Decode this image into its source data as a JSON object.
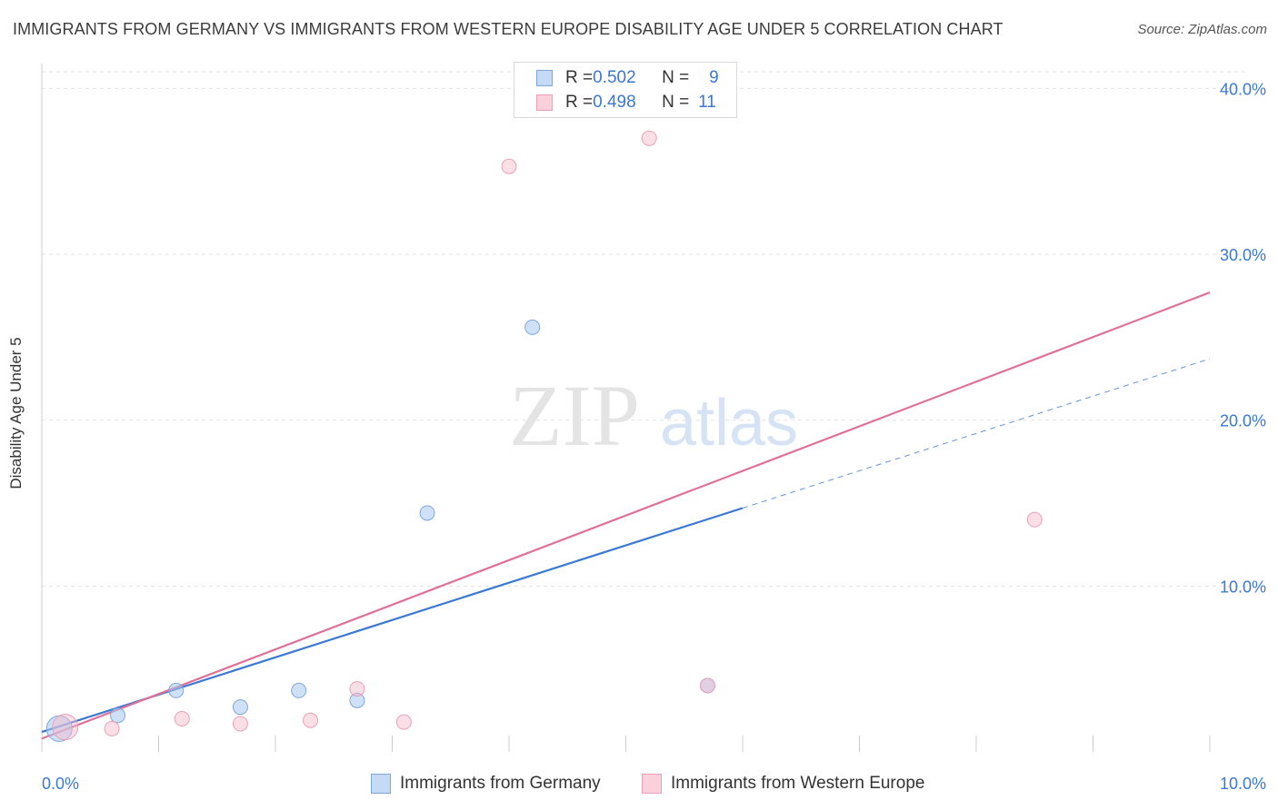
{
  "header": {
    "title": "IMMIGRANTS FROM GERMANY VS IMMIGRANTS FROM WESTERN EUROPE DISABILITY AGE UNDER 5 CORRELATION CHART",
    "source": "Source: ZipAtlas.com"
  },
  "watermark": {
    "zip": "ZIP",
    "atlas": "atlas"
  },
  "legend": {
    "rows": [
      {
        "r_label": "R = ",
        "r_value": "0.502",
        "n_label": "N = ",
        "n_value": "9"
      },
      {
        "r_label": "R = ",
        "r_value": "0.498",
        "n_label": "N = ",
        "n_value": "11"
      }
    ]
  },
  "chart_data": {
    "type": "scatter",
    "title": "IMMIGRANTS FROM GERMANY VS IMMIGRANTS FROM WESTERN EUROPE DISABILITY AGE UNDER 5 CORRELATION CHART",
    "xlabel": "",
    "ylabel": "Disability Age Under 5",
    "xlim": [
      0,
      10
    ],
    "ylim": [
      0,
      41.5
    ],
    "x_tick_labels": [
      "0.0%",
      "10.0%"
    ],
    "y_ticks": [
      10,
      20,
      30,
      40
    ],
    "y_tick_labels": [
      "10.0%",
      "20.0%",
      "30.0%",
      "40.0%"
    ],
    "grid": true,
    "legend_position": "top-center and bottom",
    "colors": {
      "germany": "#a8c8f0",
      "germany_line": "#3a78d4",
      "western_europe": "#f4b8c8",
      "western_europe_line": "#e0709a",
      "axis_text": "#3a78d4"
    },
    "series": [
      {
        "name": "Immigrants from Germany",
        "r": 0.502,
        "n": 9,
        "points": [
          {
            "x": 0.15,
            "y": 1.4
          },
          {
            "x": 0.65,
            "y": 2.2
          },
          {
            "x": 1.15,
            "y": 3.7
          },
          {
            "x": 1.7,
            "y": 2.7
          },
          {
            "x": 2.2,
            "y": 3.7
          },
          {
            "x": 2.7,
            "y": 3.1
          },
          {
            "x": 3.3,
            "y": 14.4
          },
          {
            "x": 4.2,
            "y": 25.6
          },
          {
            "x": 5.7,
            "y": 4.0
          }
        ],
        "trend": {
          "x0": 0.0,
          "y0": 1.2,
          "x1": 6.0,
          "y1": 14.7,
          "x_dash_end": 10.0,
          "y_dash_end": 23.7
        }
      },
      {
        "name": "Immigrants from Western Europe",
        "r": 0.498,
        "n": 11,
        "points": [
          {
            "x": 0.2,
            "y": 1.5
          },
          {
            "x": 0.6,
            "y": 1.4
          },
          {
            "x": 1.2,
            "y": 2.0
          },
          {
            "x": 1.7,
            "y": 1.7
          },
          {
            "x": 2.3,
            "y": 1.9
          },
          {
            "x": 2.7,
            "y": 3.8
          },
          {
            "x": 3.1,
            "y": 1.8
          },
          {
            "x": 4.0,
            "y": 35.3
          },
          {
            "x": 5.2,
            "y": 37.0
          },
          {
            "x": 5.7,
            "y": 4.0
          },
          {
            "x": 8.5,
            "y": 14.0
          }
        ],
        "trend": {
          "x0": 0.0,
          "y0": 0.8,
          "x1": 10.0,
          "y1": 27.7
        }
      }
    ]
  }
}
